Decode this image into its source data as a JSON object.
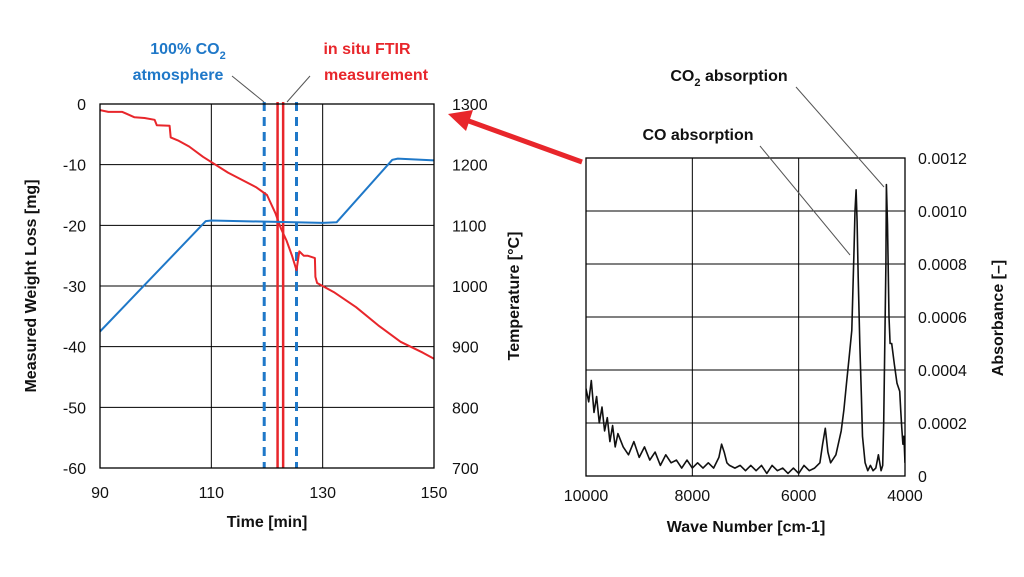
{
  "colors": {
    "temperature": "#1f78c8",
    "weight": "#e8262b",
    "ftir": "#e8262b",
    "co2_marker": "#1f78c8",
    "spectrum": "#111111",
    "grid": "#000000"
  },
  "chart_data": [
    {
      "type": "line",
      "xlabel": "Time [min]",
      "ylabel_left": "Measured Weight Loss [mg]",
      "ylabel_right": "Temperature [°C]",
      "xlim": [
        90,
        150
      ],
      "ylim_left": [
        -60,
        0
      ],
      "ylim_right": [
        700,
        1300
      ],
      "x_ticks": [
        "90",
        "110",
        "130",
        "150"
      ],
      "y_ticks_left": [
        "0",
        "-10",
        "-20",
        "-30",
        "-40",
        "-50",
        "-60"
      ],
      "y_ticks_right": [
        "1300",
        "1200",
        "1100",
        "1000",
        "900",
        "800",
        "700"
      ],
      "grid": true,
      "series": [
        {
          "axis": "left",
          "x": [
            90,
            91.5,
            94,
            95,
            96.2,
            98,
            99.8,
            100.2,
            102.5,
            102.7,
            104,
            106,
            108.5,
            113,
            118,
            120,
            121.5,
            122.5,
            123.5,
            124.5,
            125.3,
            125.8,
            126.6,
            127.3,
            128.6,
            128.7,
            129,
            132,
            136,
            140,
            144,
            148,
            150
          ],
          "values": [
            -1,
            -1.3,
            -1.3,
            -1.7,
            -2.2,
            -2.3,
            -2.6,
            -3.5,
            -3.6,
            -5.5,
            -6,
            -7,
            -8.7,
            -11.3,
            -13.7,
            -15,
            -18,
            -20.5,
            -22.5,
            -25,
            -27.4,
            -24.3,
            -25,
            -25,
            -25.4,
            -28.5,
            -29.5,
            -31,
            -33.5,
            -36.5,
            -39.2,
            -41,
            -42
          ]
        },
        {
          "axis": "right",
          "x": [
            90,
            109,
            110,
            130,
            132.5,
            142.5,
            143.5,
            150
          ],
          "values": [
            925,
            1107,
            1108,
            1104,
            1105,
            1208,
            1210,
            1207
          ]
        }
      ],
      "markers": [
        {
          "x": 119.5,
          "style": "dashed",
          "color": "#1f78c8"
        },
        {
          "x": 125.3,
          "style": "dashed",
          "color": "#1f78c8"
        },
        {
          "x": 121.9,
          "style": "solid",
          "color": "#e8262b"
        },
        {
          "x": 122.9,
          "style": "solid",
          "color": "#e8262b"
        }
      ]
    },
    {
      "type": "line",
      "xlabel": "Wave Number [cm-1]",
      "ylabel": "Absorbance [–]",
      "xlim": [
        10000,
        4000
      ],
      "ylim": [
        0,
        0.0012
      ],
      "x_ticks": [
        "10000",
        "8000",
        "6000",
        "4000"
      ],
      "y_ticks": [
        "0",
        "0.0002",
        "0.0004",
        "0.0006",
        "0.0008",
        "0.0010",
        "0.0012"
      ],
      "grid": true,
      "series": [
        {
          "x": [
            10000,
            9950,
            9900,
            9850,
            9800,
            9750,
            9700,
            9650,
            9600,
            9550,
            9500,
            9450,
            9400,
            9300,
            9200,
            9100,
            9000,
            8900,
            8800,
            8700,
            8600,
            8500,
            8400,
            8300,
            8200,
            8100,
            8000,
            7900,
            7800,
            7700,
            7600,
            7500,
            7450,
            7400,
            7350,
            7300,
            7200,
            7100,
            7000,
            6900,
            6800,
            6700,
            6600,
            6500,
            6400,
            6300,
            6200,
            6100,
            6000,
            5900,
            5800,
            5700,
            5600,
            5550,
            5500,
            5450,
            5400,
            5300,
            5200,
            5150,
            5100,
            5050,
            5000,
            4980,
            4960,
            4940,
            4920,
            4900,
            4880,
            4850,
            4820,
            4800,
            4750,
            4700,
            4650,
            4600,
            4550,
            4500,
            4450,
            4420,
            4400,
            4380,
            4360,
            4350,
            4330,
            4300,
            4280,
            4250,
            4200,
            4150,
            4100,
            4080,
            4060,
            4040,
            4020,
            4000
          ],
          "values": [
            0.00033,
            0.00028,
            0.00036,
            0.00024,
            0.0003,
            0.0002,
            0.00026,
            0.00017,
            0.00022,
            0.00013,
            0.00019,
            0.00011,
            0.00016,
            0.00011,
            8e-05,
            0.00013,
            7e-05,
            0.00011,
            6e-05,
            9e-05,
            4e-05,
            8e-05,
            5e-05,
            6e-05,
            3e-05,
            6e-05,
            3e-05,
            5e-05,
            3e-05,
            5e-05,
            3e-05,
            7e-05,
            0.00012,
            9e-05,
            5e-05,
            4e-05,
            3e-05,
            4e-05,
            2e-05,
            4e-05,
            2e-05,
            4e-05,
            1e-05,
            4e-05,
            2e-05,
            3e-05,
            1e-05,
            3e-05,
            1e-05,
            4e-05,
            2e-05,
            3e-05,
            5e-05,
            0.00012,
            0.00018,
            9e-05,
            5e-05,
            8e-05,
            0.00017,
            0.00025,
            0.00035,
            0.00045,
            0.00055,
            0.0007,
            0.00085,
            0.001,
            0.00108,
            0.00096,
            0.00075,
            0.0005,
            0.0003,
            0.00015,
            5e-05,
            2e-05,
            4e-05,
            2e-05,
            3e-05,
            8e-05,
            2e-05,
            4e-05,
            0.0002,
            0.0005,
            0.0008,
            0.0011,
            0.00095,
            0.0006,
            0.0005,
            0.0005,
            0.00042,
            0.00035,
            0.00032,
            0.00025,
            0.00018,
            0.00012,
            0.00015,
            5e-05
          ]
        }
      ]
    }
  ],
  "annotations": {
    "co2_marker_line1": "100% CO",
    "co2_marker_sub": "2",
    "co2_marker_line2": "atmosphere",
    "ftir_line1": "in situ FTIR",
    "ftir_line2": "measurement",
    "co2_absorption_prefix": "CO",
    "co2_absorption_sub": "2",
    "co2_absorption_suffix": " absorption",
    "co_absorption": "CO absorption"
  }
}
